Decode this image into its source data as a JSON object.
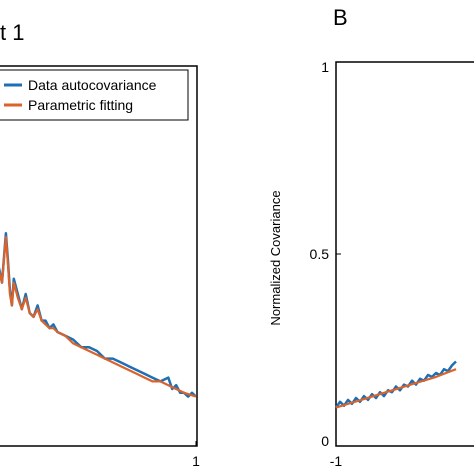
{
  "figure": {
    "panel_left_title": "t 1",
    "panel_right_title": "B"
  },
  "colors": {
    "data": "#1f6fb4",
    "fit": "#d9632b",
    "axis": "#000000",
    "background": "#ffffff"
  },
  "chart_data": [
    {
      "type": "line",
      "panel": "left",
      "title": "t 1",
      "xlabel": "",
      "ylabel": "",
      "xticks": [
        "1"
      ],
      "yticks": [],
      "xlim": [
        0,
        1
      ],
      "ylim": [
        0,
        1
      ],
      "grid": false,
      "legend_position": "top-left",
      "legend": [
        "Data autocovariance",
        "Parametric fitting"
      ],
      "series": [
        {
          "name": "Data autocovariance",
          "color": "#1f6fb4",
          "x": [
            0.0,
            0.02,
            0.04,
            0.05,
            0.06,
            0.07,
            0.08,
            0.1,
            0.12,
            0.14,
            0.16,
            0.18,
            0.2,
            0.22,
            0.24,
            0.26,
            0.28,
            0.3,
            0.34,
            0.38,
            0.42,
            0.46,
            0.5,
            0.54,
            0.58,
            0.62,
            0.66,
            0.7,
            0.74,
            0.78,
            0.82,
            0.86,
            0.88,
            0.9,
            0.92,
            0.94,
            0.96,
            0.98,
            1.0
          ],
          "y": [
            0.48,
            0.43,
            0.56,
            0.49,
            0.41,
            0.37,
            0.44,
            0.4,
            0.36,
            0.4,
            0.35,
            0.34,
            0.37,
            0.33,
            0.33,
            0.31,
            0.32,
            0.3,
            0.29,
            0.28,
            0.26,
            0.26,
            0.25,
            0.23,
            0.23,
            0.22,
            0.21,
            0.2,
            0.19,
            0.18,
            0.17,
            0.18,
            0.15,
            0.16,
            0.14,
            0.14,
            0.13,
            0.14,
            0.13
          ]
        },
        {
          "name": "Parametric fitting",
          "color": "#d9632b",
          "x": [
            0.0,
            0.02,
            0.04,
            0.05,
            0.06,
            0.07,
            0.08,
            0.1,
            0.12,
            0.14,
            0.16,
            0.18,
            0.2,
            0.22,
            0.24,
            0.26,
            0.28,
            0.3,
            0.34,
            0.38,
            0.42,
            0.46,
            0.5,
            0.54,
            0.58,
            0.62,
            0.66,
            0.7,
            0.74,
            0.78,
            0.82,
            0.86,
            0.9,
            0.94,
            1.0
          ],
          "y": [
            0.47,
            0.43,
            0.55,
            0.48,
            0.4,
            0.37,
            0.43,
            0.39,
            0.36,
            0.39,
            0.35,
            0.34,
            0.36,
            0.33,
            0.32,
            0.31,
            0.31,
            0.3,
            0.29,
            0.27,
            0.26,
            0.25,
            0.24,
            0.23,
            0.22,
            0.21,
            0.2,
            0.19,
            0.18,
            0.17,
            0.17,
            0.16,
            0.15,
            0.14,
            0.13
          ]
        }
      ]
    },
    {
      "type": "line",
      "panel": "right",
      "title": "B",
      "xlabel": "",
      "ylabel": "Normalized Covariance",
      "xticks": [
        "-1"
      ],
      "yticks": [
        "0",
        "0.5",
        "1"
      ],
      "xlim": [
        -1,
        -0.25
      ],
      "ylim": [
        0,
        1
      ],
      "grid": false,
      "series": [
        {
          "name": "Data autocovariance",
          "color": "#1f6fb4",
          "x": [
            -1.0,
            -0.98,
            -0.96,
            -0.94,
            -0.92,
            -0.9,
            -0.88,
            -0.86,
            -0.84,
            -0.82,
            -0.8,
            -0.78,
            -0.76,
            -0.74,
            -0.72,
            -0.7,
            -0.68,
            -0.66,
            -0.64,
            -0.62,
            -0.6,
            -0.58,
            -0.56,
            -0.54,
            -0.52,
            -0.5,
            -0.48,
            -0.46,
            -0.44,
            -0.42,
            -0.4
          ],
          "y": [
            0.1,
            0.115,
            0.105,
            0.12,
            0.11,
            0.125,
            0.115,
            0.13,
            0.12,
            0.135,
            0.125,
            0.14,
            0.13,
            0.145,
            0.14,
            0.155,
            0.145,
            0.16,
            0.155,
            0.17,
            0.16,
            0.175,
            0.17,
            0.185,
            0.18,
            0.19,
            0.185,
            0.2,
            0.195,
            0.21,
            0.22
          ]
        },
        {
          "name": "Parametric fitting",
          "color": "#d9632b",
          "x": [
            -1.0,
            -0.95,
            -0.9,
            -0.85,
            -0.8,
            -0.75,
            -0.7,
            -0.65,
            -0.6,
            -0.55,
            -0.5,
            -0.45,
            -0.4
          ],
          "y": [
            0.1,
            0.108,
            0.116,
            0.124,
            0.132,
            0.14,
            0.148,
            0.156,
            0.164,
            0.172,
            0.18,
            0.19,
            0.2
          ]
        }
      ]
    }
  ]
}
